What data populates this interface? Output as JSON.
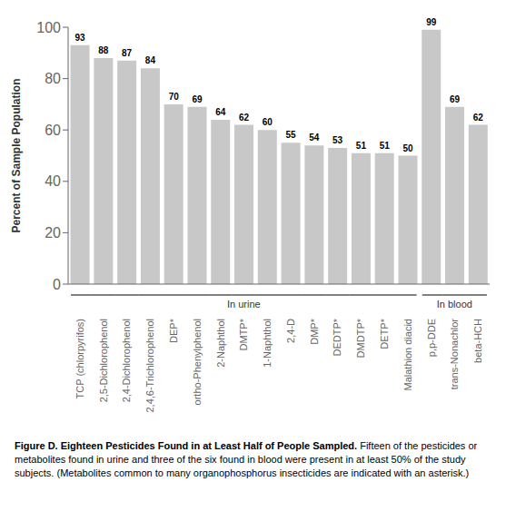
{
  "chart_data": {
    "type": "bar",
    "title": "Figure D. Eighteen Pesticides Found in at Least Half of People Sampled.",
    "caption": "Fifteen of the pesticides or metabolites found in urine and three of the six found in blood were present in at least 50% of the study subjects. (Metabolites common to many organophosphorus insecticides are indicated with an asterisk.)",
    "ylabel": "Percent of Sample Population",
    "categories": [
      "TCP (chlorpyrifos)",
      "2,5-Dichlorophenol",
      "2,4-Dichlorophenol",
      "2,4,6-Trichlorophenol",
      "DEP*",
      "ortho-Phenylphenol",
      "2-Naphthol",
      "DMTP*",
      "1-Naphthol",
      "2,4-D",
      "DMP*",
      "DEDTP*",
      "DMDTP*",
      "DETP*",
      "Malathion diacid",
      "p,p-DDE",
      "trans-Nonachlor",
      "beta-HCH"
    ],
    "values": [
      93,
      88,
      87,
      84,
      70,
      69,
      64,
      62,
      60,
      55,
      54,
      53,
      51,
      51,
      50,
      99,
      69,
      62
    ],
    "color": "#c8c8c8",
    "ylim": [
      0,
      100
    ],
    "yticks": [
      0,
      20,
      40,
      60,
      80,
      100
    ],
    "grid": false,
    "data_labels": true,
    "groups": [
      {
        "label": "In urine",
        "indices": [
          0,
          1,
          2,
          3,
          4,
          5,
          6,
          7,
          8,
          9,
          10,
          11,
          12,
          13,
          14
        ]
      },
      {
        "label": "In blood",
        "indices": [
          15,
          16,
          17
        ]
      }
    ]
  }
}
